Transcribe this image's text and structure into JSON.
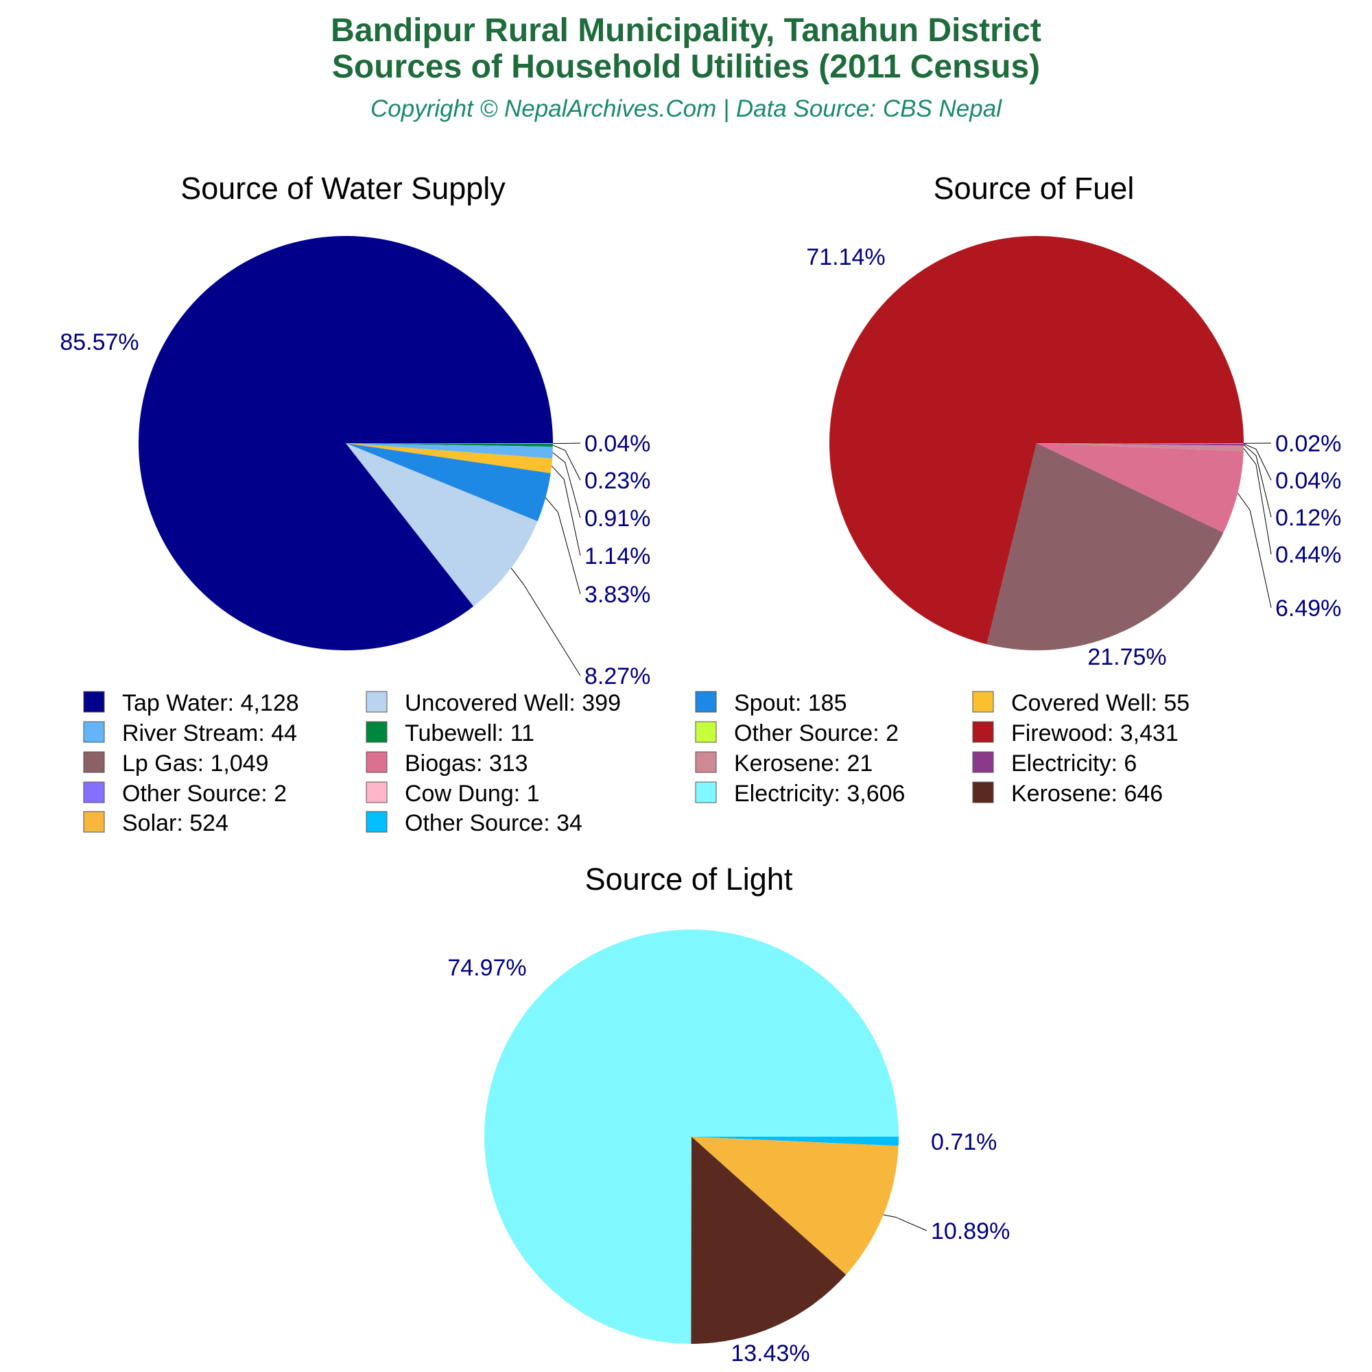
{
  "header": {
    "title_line1": "Bandipur Rural Municipality, Tanahun District",
    "title_line2": "Sources of Household Utilities (2011 Census)",
    "subtitle": "Copyright © NepalArchives.Com | Data Source: CBS Nepal"
  },
  "chart_data": [
    {
      "type": "pie",
      "title": "Source of Water Supply",
      "slices": [
        {
          "name": "Tap Water",
          "value": 4128,
          "percent_label": "85.57%",
          "color": "#00008b"
        },
        {
          "name": "Uncovered Well",
          "value": 399,
          "percent_label": "8.27%",
          "color": "#bad3ee"
        },
        {
          "name": "Spout",
          "value": 185,
          "percent_label": "3.83%",
          "color": "#1e88e5"
        },
        {
          "name": "Covered Well",
          "value": 55,
          "percent_label": "1.14%",
          "color": "#fbc02d"
        },
        {
          "name": "River Stream",
          "value": 44,
          "percent_label": "0.91%",
          "color": "#64b5f6"
        },
        {
          "name": "Tubewell",
          "value": 11,
          "percent_label": "0.23%",
          "color": "#00873e"
        },
        {
          "name": "Other Source",
          "value": 2,
          "percent_label": "0.04%",
          "color": "#c6ff3c"
        }
      ]
    },
    {
      "type": "pie",
      "title": "Source of Fuel",
      "slices": [
        {
          "name": "Firewood",
          "value": 3431,
          "percent_label": "71.14%",
          "color": "#b0171f"
        },
        {
          "name": "Lp Gas",
          "value": 1049,
          "percent_label": "21.75%",
          "color": "#8b6066"
        },
        {
          "name": "Biogas",
          "value": 313,
          "percent_label": "6.49%",
          "color": "#dc7090"
        },
        {
          "name": "Kerosene",
          "value": 21,
          "percent_label": "0.44%",
          "color": "#cd8a94"
        },
        {
          "name": "Electricity",
          "value": 6,
          "percent_label": "0.12%",
          "color": "#8b3a8b"
        },
        {
          "name": "Other Source",
          "value": 2,
          "percent_label": "0.04%",
          "color": "#8470ff"
        },
        {
          "name": "Cow Dung",
          "value": 1,
          "percent_label": "0.02%",
          "color": "#ffb6c8"
        }
      ]
    },
    {
      "type": "pie",
      "title": "Source of Light",
      "slices": [
        {
          "name": "Electricity",
          "value": 3606,
          "percent_label": "74.97%",
          "color": "#7ff9ff"
        },
        {
          "name": "Kerosene",
          "value": 646,
          "percent_label": "13.43%",
          "color": "#5a2a20"
        },
        {
          "name": "Solar",
          "value": 524,
          "percent_label": "10.89%",
          "color": "#f6b73c"
        },
        {
          "name": "Other Source",
          "value": 34,
          "percent_label": "0.71%",
          "color": "#00bfff"
        }
      ]
    }
  ],
  "legend": {
    "items": [
      {
        "label": "Tap Water: 4,128",
        "color": "#00008b"
      },
      {
        "label": "Uncovered Well: 399",
        "color": "#bad3ee"
      },
      {
        "label": "Spout: 185",
        "color": "#1e88e5"
      },
      {
        "label": "Covered Well: 55",
        "color": "#fbc02d"
      },
      {
        "label": "River Stream: 44",
        "color": "#64b5f6"
      },
      {
        "label": "Tubewell: 11",
        "color": "#00873e"
      },
      {
        "label": "Other Source: 2",
        "color": "#c6ff3c"
      },
      {
        "label": "Firewood: 3,431",
        "color": "#b0171f"
      },
      {
        "label": "Lp Gas: 1,049",
        "color": "#8b6066"
      },
      {
        "label": "Biogas: 313",
        "color": "#dc7090"
      },
      {
        "label": "Kerosene: 21",
        "color": "#cd8a94"
      },
      {
        "label": "Electricity: 6",
        "color": "#8b3a8b"
      },
      {
        "label": "Other Source: 2",
        "color": "#8470ff"
      },
      {
        "label": "Cow Dung: 1",
        "color": "#ffb6c8"
      },
      {
        "label": "Electricity: 3,606",
        "color": "#7ff9ff"
      },
      {
        "label": "Kerosene: 646",
        "color": "#5a2a20"
      },
      {
        "label": "Solar: 524",
        "color": "#f6b73c"
      },
      {
        "label": "Other Source: 34",
        "color": "#00bfff"
      }
    ]
  }
}
